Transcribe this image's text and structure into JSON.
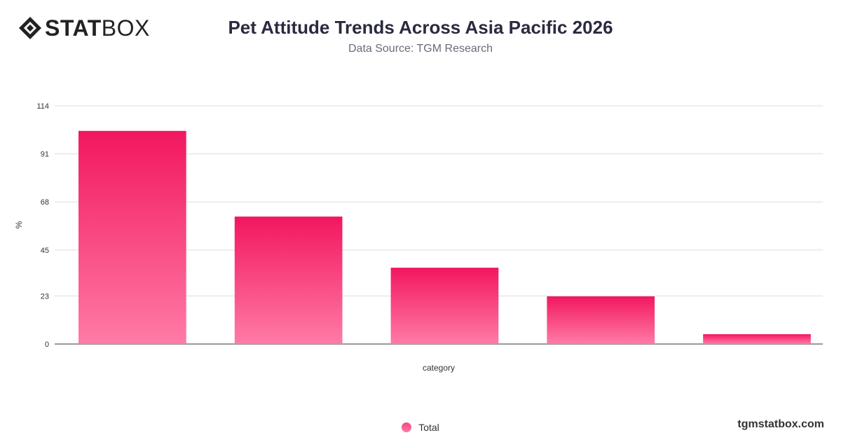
{
  "brand": {
    "bold": "STAT",
    "light": "BOX"
  },
  "header": {
    "title": "Pet Attitude Trends Across Asia Pacific 2026",
    "subtitle": "Data Source: TGM Research"
  },
  "footer": {
    "site": "tgmstatbox.com"
  },
  "colors": {
    "bar_top": "#f2175f",
    "bar_bottom": "#ff7ba6",
    "grid": "#dddddd",
    "axis": "#333333"
  },
  "chart_data": {
    "type": "bar",
    "categories": [
      "",
      "",
      "",
      "",
      ""
    ],
    "series": [
      {
        "name": "Total",
        "values": [
          102,
          61,
          36.5,
          22.8,
          4.7
        ]
      }
    ],
    "xlabel": "category",
    "ylabel": "%",
    "ylim": [
      0,
      114
    ],
    "yticks": [
      0,
      23,
      45,
      68,
      91,
      114
    ],
    "grid": true,
    "legend": "bottom-center"
  }
}
